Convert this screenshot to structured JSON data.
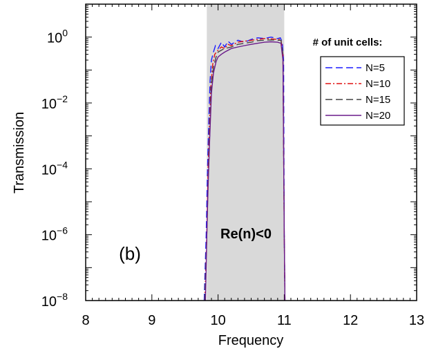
{
  "chart_data": {
    "type": "line",
    "xlabel": "Frequency",
    "ylabel": "Transmission",
    "xlim": [
      8,
      13
    ],
    "ylim": [
      1e-08,
      10
    ],
    "yscale": "log",
    "x_ticks": [
      8,
      9,
      10,
      11,
      12,
      13
    ],
    "x_tick_labels": [
      "8",
      "9",
      "10",
      "11",
      "12",
      "13"
    ],
    "y_tick_exponents": [
      0,
      -2,
      -4,
      -6,
      -8
    ],
    "y_tick_base": "10",
    "shaded_region": {
      "x": [
        9.83,
        11.0
      ],
      "color": "#d9d9d9",
      "label": "Re(n)<0"
    },
    "panel_label": "(b)",
    "legend": {
      "title": "# of unit cells:",
      "placement": "right-top"
    },
    "grid": false,
    "series": [
      {
        "name": "N=5",
        "color": "#1a1aff",
        "dash": "10,5",
        "x": [
          9.79,
          9.82,
          9.84,
          9.86,
          9.88,
          9.9,
          9.93,
          9.96,
          10.0,
          10.05,
          10.1,
          10.15,
          10.2,
          10.3,
          10.4,
          10.5,
          10.6,
          10.7,
          10.8,
          10.9,
          10.94,
          10.97,
          10.99,
          11.0,
          11.01
        ],
        "y": [
          1e-08,
          1e-06,
          0.0001,
          0.003,
          0.05,
          0.2,
          0.35,
          0.55,
          0.45,
          0.7,
          0.5,
          0.75,
          0.6,
          0.8,
          0.7,
          0.85,
          0.95,
          0.9,
          1.0,
          0.9,
          0.95,
          0.7,
          0.2,
          1e-06,
          1e-08
        ]
      },
      {
        "name": "N=10",
        "color": "#e01010",
        "dash": "8,3,2,3",
        "x": [
          9.8,
          9.83,
          9.85,
          9.87,
          9.89,
          9.92,
          9.95,
          10.0,
          10.05,
          10.1,
          10.15,
          10.2,
          10.3,
          10.4,
          10.5,
          10.6,
          10.7,
          10.8,
          10.9,
          10.95,
          10.98,
          11.0,
          11.01
        ],
        "y": [
          1e-08,
          1e-06,
          0.0001,
          0.002,
          0.03,
          0.15,
          0.3,
          0.4,
          0.5,
          0.45,
          0.6,
          0.55,
          0.7,
          0.75,
          0.8,
          0.85,
          0.9,
          0.88,
          0.85,
          0.85,
          0.3,
          1e-06,
          1e-08
        ]
      },
      {
        "name": "N=15",
        "color": "#444444",
        "dash": "10,5",
        "x": [
          9.8,
          9.83,
          9.85,
          9.87,
          9.9,
          9.93,
          9.97,
          10.0,
          10.05,
          10.1,
          10.2,
          10.3,
          10.4,
          10.5,
          10.6,
          10.7,
          10.8,
          10.9,
          10.95,
          10.98,
          11.0,
          11.01
        ],
        "y": [
          1e-08,
          1e-06,
          5e-05,
          0.001,
          0.04,
          0.12,
          0.25,
          0.35,
          0.4,
          0.45,
          0.5,
          0.6,
          0.65,
          0.7,
          0.78,
          0.8,
          0.82,
          0.8,
          0.8,
          0.3,
          1e-06,
          1e-08
        ]
      },
      {
        "name": "N=20",
        "color": "#6a1a8a",
        "dash": "",
        "x": [
          9.81,
          9.83,
          9.85,
          9.87,
          9.9,
          9.93,
          9.97,
          10.0,
          10.05,
          10.1,
          10.2,
          10.3,
          10.4,
          10.5,
          10.6,
          10.7,
          10.8,
          10.9,
          10.95,
          10.98,
          11.0,
          11.01
        ],
        "y": [
          1e-08,
          1e-06,
          3e-05,
          0.0005,
          0.02,
          0.08,
          0.18,
          0.25,
          0.3,
          0.35,
          0.45,
          0.5,
          0.55,
          0.6,
          0.65,
          0.7,
          0.72,
          0.7,
          0.65,
          0.2,
          1e-06,
          1e-08
        ]
      }
    ]
  }
}
